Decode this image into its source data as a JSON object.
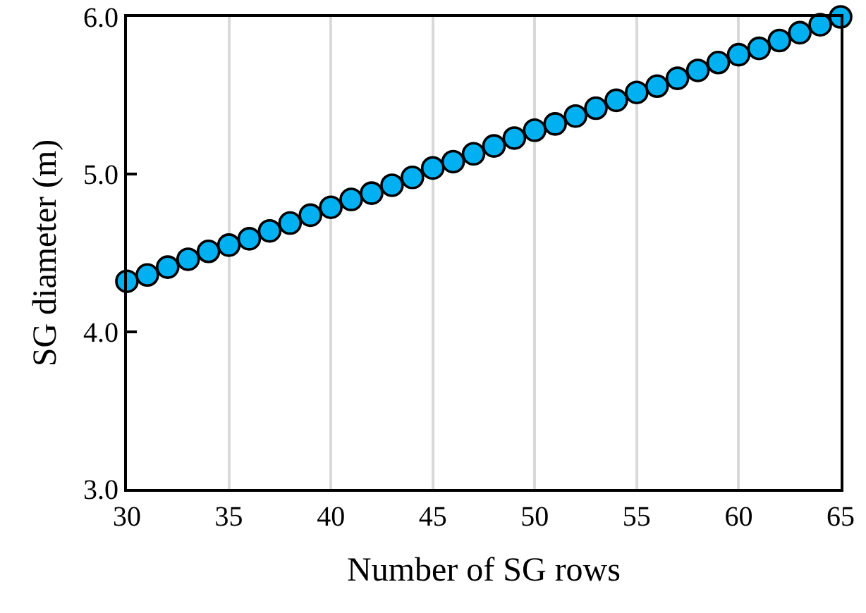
{
  "chart_data": {
    "type": "scatter",
    "xlabel": "Number of SG rows",
    "ylabel": "SG diameter (m)",
    "x": [
      30,
      31,
      32,
      33,
      34,
      35,
      36,
      37,
      38,
      39,
      40,
      41,
      42,
      43,
      44,
      45,
      46,
      47,
      48,
      49,
      50,
      51,
      52,
      53,
      54,
      55,
      56,
      57,
      58,
      59,
      60,
      61,
      62,
      63,
      64,
      65
    ],
    "series": [
      {
        "color": "#00b0f0",
        "values": [
          4.32,
          4.36,
          4.41,
          4.46,
          4.51,
          4.55,
          4.59,
          4.64,
          4.69,
          4.74,
          4.79,
          4.84,
          4.88,
          4.93,
          4.98,
          5.04,
          5.08,
          5.13,
          5.18,
          5.23,
          5.28,
          5.32,
          5.37,
          5.42,
          5.47,
          5.52,
          5.56,
          5.61,
          5.66,
          5.71,
          5.76,
          5.8,
          5.85,
          5.9,
          5.95,
          6.0
        ]
      }
    ],
    "xlim": [
      30,
      65
    ],
    "xticks": [
      30,
      35,
      40,
      45,
      50,
      55,
      60,
      65
    ],
    "ylim": [
      3,
      6
    ],
    "yticks": [
      {
        "value": 3,
        "label": "3.0"
      },
      {
        "value": 4,
        "label": "4.0"
      },
      {
        "value": 5,
        "label": "5.0"
      },
      {
        "value": 6,
        "label": "6.0"
      }
    ],
    "grid": "x",
    "marker": "circle"
  }
}
